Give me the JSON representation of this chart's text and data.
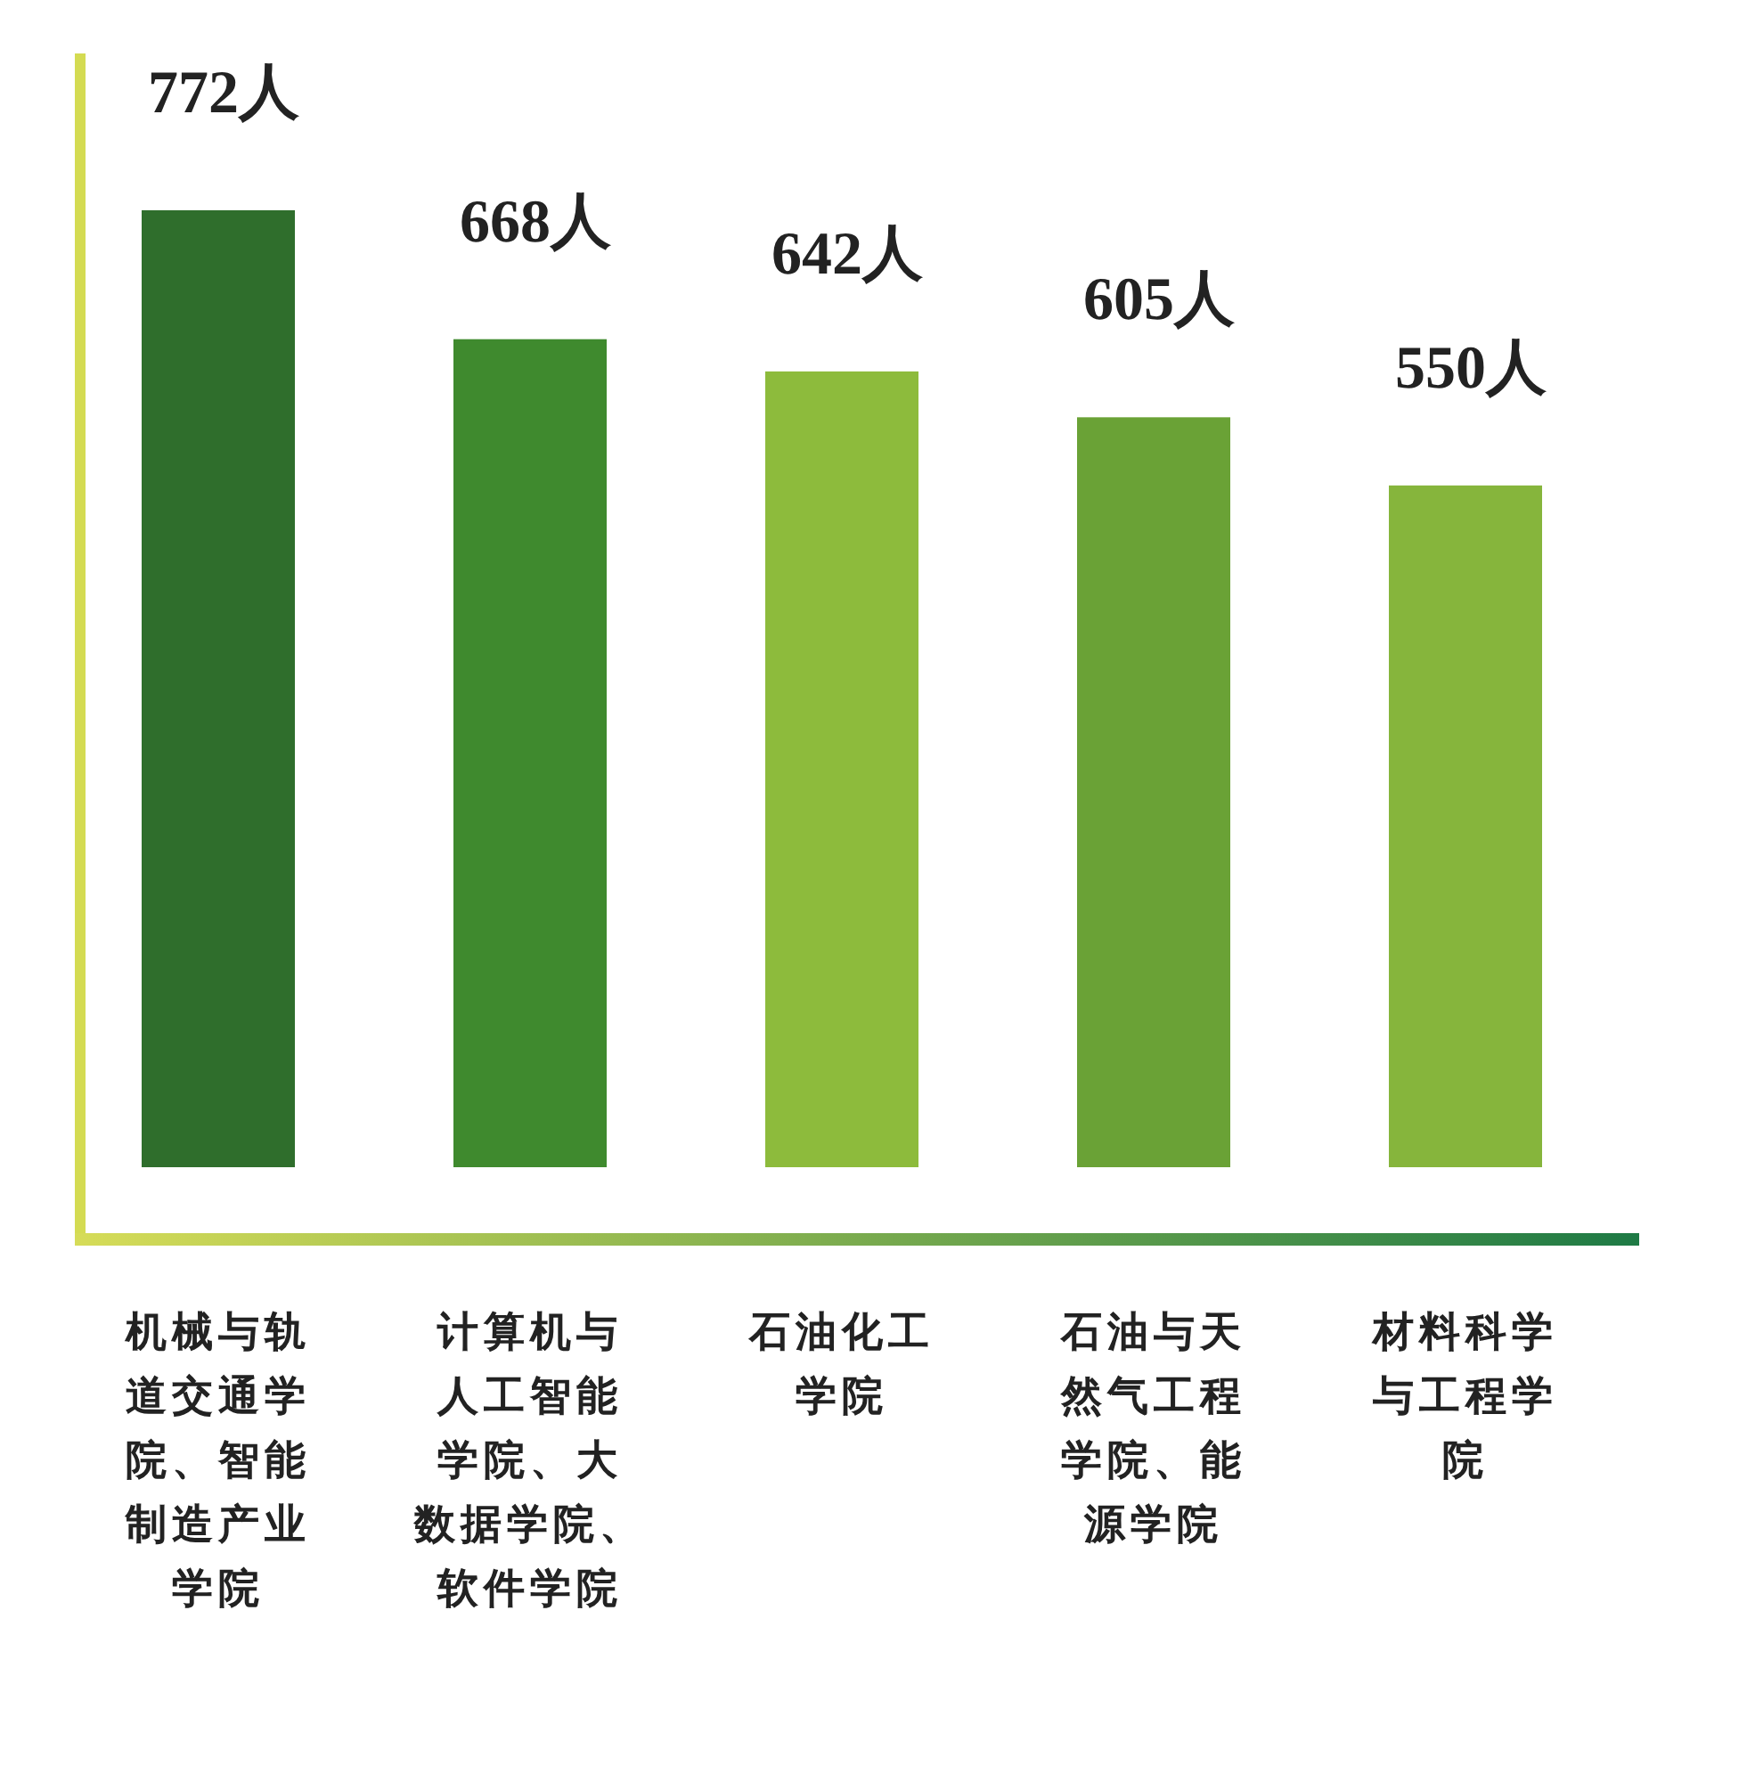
{
  "chart_data": {
    "type": "bar",
    "categories": [
      "机械与轨道交通学院、智能制造产业学院",
      "计算机与人工智能学院、大数据学院、软件学院",
      "石油化工学院",
      "石油与天然气工程学院、能源学院",
      "材料科学与工程学院"
    ],
    "values": [
      772,
      668,
      642,
      605,
      550
    ],
    "value_labels": [
      "772人",
      "668人",
      "642人",
      "605人",
      "550人"
    ],
    "colors": [
      "#2f6e2c",
      "#3f8a2e",
      "#8dbb3c",
      "#6aa236",
      "#86b53c"
    ],
    "data_labels": false
  }
}
